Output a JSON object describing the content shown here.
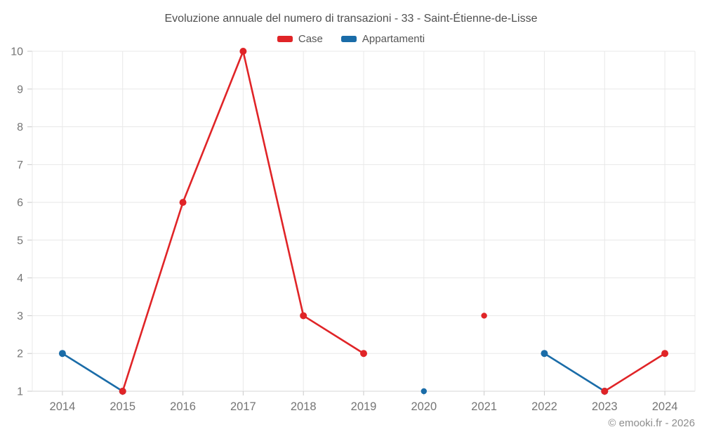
{
  "title": "Evoluzione annuale del numero di transazioni - 33 - Saint-Étienne-de-Lisse",
  "legend": {
    "items": [
      {
        "label": "Case",
        "color": "#e02427"
      },
      {
        "label": "Appartamenti",
        "color": "#1a6ca8"
      }
    ]
  },
  "footer": {
    "credit": "© emooki.fr - 2026"
  },
  "colors": {
    "grid": "#e8e8e8",
    "axis": "#d6d6d6",
    "tick": "#c9c9c9",
    "tick_label": "#757575",
    "title": "#4f4f4f",
    "footer": "#8d8d8d",
    "background": "#ffffff"
  },
  "chart_data": {
    "type": "line",
    "title": "Evoluzione annuale del numero di transazioni - 33 - Saint-Étienne-de-Lisse",
    "categories": [
      "2014",
      "2015",
      "2016",
      "2017",
      "2018",
      "2019",
      "2020",
      "2021",
      "2022",
      "2023",
      "2024"
    ],
    "series": [
      {
        "name": "Appartamenti",
        "color": "#1a6ca8",
        "values": [
          2,
          1,
          null,
          null,
          null,
          null,
          1,
          null,
          2,
          1,
          null
        ]
      },
      {
        "name": "Case",
        "color": "#e02427",
        "values": [
          null,
          1,
          6,
          10,
          3,
          2,
          null,
          3,
          null,
          1,
          2
        ]
      }
    ],
    "xlabel": "",
    "ylabel": "",
    "ylim": [
      1,
      10
    ],
    "yticks": [
      1,
      2,
      3,
      4,
      5,
      6,
      7,
      8,
      9,
      10
    ],
    "grid": true,
    "legend_position": "top"
  }
}
